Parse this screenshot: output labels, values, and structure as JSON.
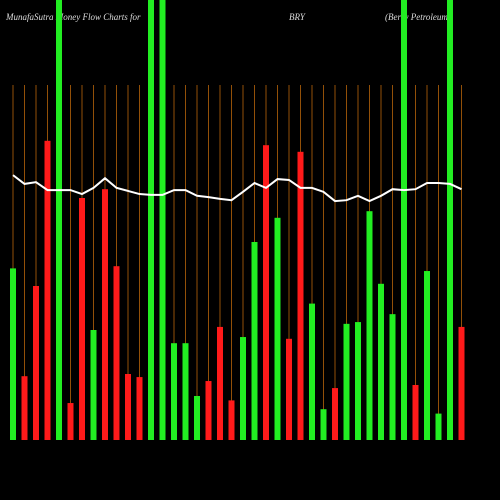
{
  "chart_data": {
    "type": "bar",
    "title": "MunafaSutra  Money Flow  Charts for",
    "ticker": "BRY",
    "company": "(Berry Petroleum",
    "categories": [
      null,
      null,
      null,
      null,
      null,
      null,
      null,
      null,
      null,
      null,
      null,
      null,
      null,
      null,
      null,
      null,
      null,
      null,
      null,
      null,
      null,
      null,
      null,
      null,
      null,
      null,
      null,
      null,
      null,
      null,
      null,
      null,
      null,
      null,
      null,
      null,
      null,
      null,
      null,
      null
    ],
    "values": [
      39,
      14.5,
      35,
      68,
      100,
      8.4,
      55,
      25,
      57,
      39.5,
      15,
      14.3,
      100,
      100,
      22,
      22,
      10,
      13.4,
      25.7,
      9,
      23.4,
      45,
      67,
      50.5,
      23,
      65.5,
      31,
      7,
      11.8,
      26.4,
      26.8,
      52,
      35.5,
      28.6,
      100,
      12.5,
      38.4,
      6,
      100,
      25.7
    ],
    "colors": [
      "#22ee22",
      "#ff1a1a",
      "#ff1a1a",
      "#ff1a1a",
      "#22ee22",
      "#ff1a1a",
      "#ff1a1a",
      "#22ee22",
      "#ff1a1a",
      "#ff1a1a",
      "#ff1a1a",
      "#ff1a1a",
      "#22ee22",
      "#22ee22",
      "#22ee22",
      "#22ee22",
      "#22ee22",
      "#ff1a1a",
      "#ff1a1a",
      "#ff1a1a",
      "#22ee22",
      "#22ee22",
      "#ff1a1a",
      "#22ee22",
      "#ff1a1a",
      "#ff1a1a",
      "#22ee22",
      "#22ee22",
      "#ff1a1a",
      "#22ee22",
      "#22ee22",
      "#22ee22",
      "#22ee22",
      "#22ee22",
      "#22ee22",
      "#ff1a1a",
      "#22ee22",
      "#22ee22",
      "#22ee22",
      "#ff1a1a"
    ],
    "line": {
      "color": "#ffffff",
      "values": [
        60.2,
        58.2,
        58.6,
        56.8,
        56.8,
        56.8,
        55.9,
        57.3,
        59.5,
        57.3,
        56.6,
        55.9,
        55.7,
        55.7,
        56.8,
        56.8,
        55.5,
        55.2,
        54.8,
        54.5,
        56.4,
        58.4,
        57.3,
        59.3,
        59.1,
        57.3,
        57.3,
        56.4,
        54.3,
        54.5,
        55.5,
        54.3,
        55.5,
        57,
        56.8,
        57,
        58.4,
        58.4,
        58.2,
        57
      ]
    },
    "ylim": [
      0,
      100
    ],
    "grid_color": "#b8640a"
  }
}
